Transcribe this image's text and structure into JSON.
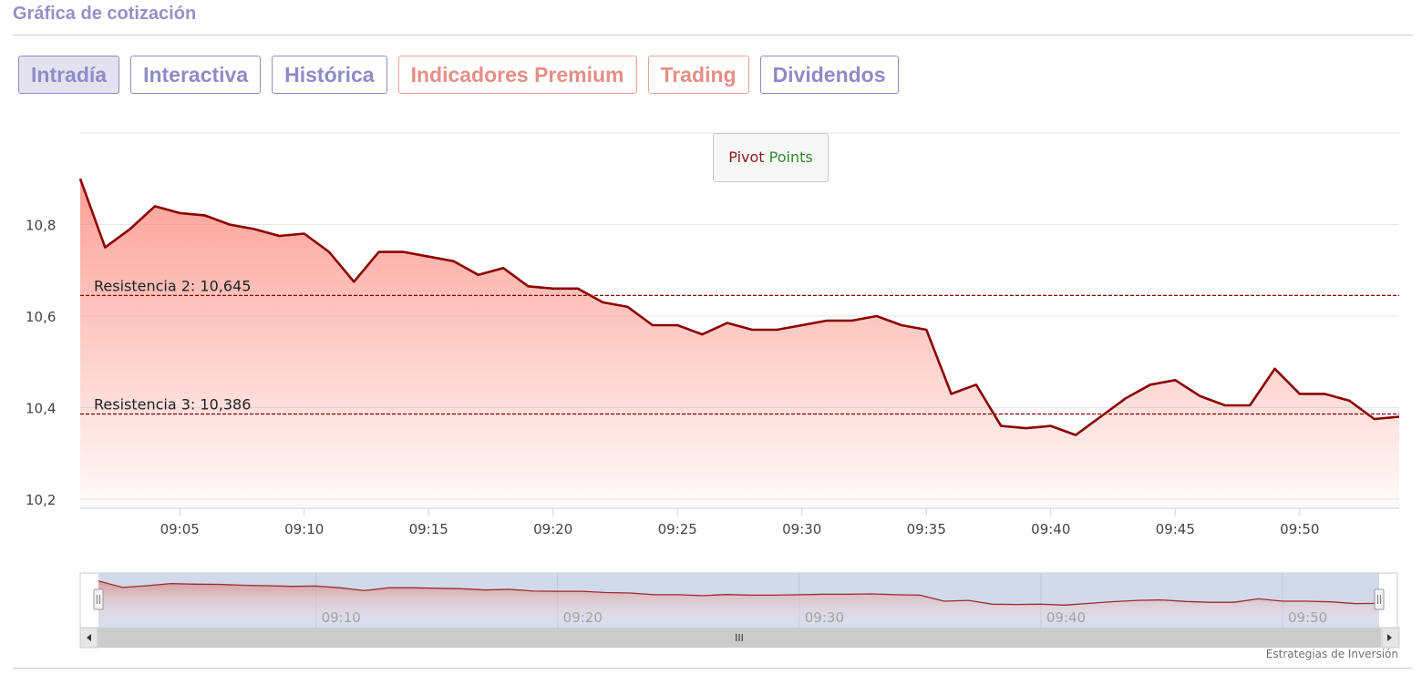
{
  "header": {
    "title": "Gráfica de cotización"
  },
  "tabs": [
    {
      "label": "Intradía",
      "active": true,
      "style": "normal"
    },
    {
      "label": "Interactiva",
      "active": false,
      "style": "normal"
    },
    {
      "label": "Histórica",
      "active": false,
      "style": "normal"
    },
    {
      "label": "Indicadores Premium",
      "active": false,
      "style": "premium"
    },
    {
      "label": "Trading",
      "active": false,
      "style": "premium"
    },
    {
      "label": "Dividendos",
      "active": false,
      "style": "normal"
    }
  ],
  "pivot_button": {
    "word1": "Pivot",
    "word2": "Points"
  },
  "navigator": {
    "scroll_handle": "III"
  },
  "footer": {
    "credit": "Estrategias de Inversión"
  },
  "colors": {
    "line": "#8b0000",
    "area": "#fa8072",
    "accent": "#9590c9",
    "premium": "#e48f86"
  },
  "chart_data": {
    "type": "area",
    "xlabel": "",
    "ylabel": "",
    "ylim": [
      10.18,
      11.0
    ],
    "xlim": [
      "09:01",
      "09:54"
    ],
    "yticks": [
      "10,2",
      "10,4",
      "10,6",
      "10,8"
    ],
    "xticks": [
      "09:05",
      "09:10",
      "09:15",
      "09:20",
      "09:25",
      "09:30",
      "09:35",
      "09:40",
      "09:45",
      "09:50"
    ],
    "navigator_ticks": [
      "09:10",
      "09:20",
      "09:30",
      "09:40",
      "09:50"
    ],
    "grid": true,
    "series": [
      {
        "x": [
          "09:01",
          "09:02",
          "09:03",
          "09:04",
          "09:05",
          "09:06",
          "09:07",
          "09:08",
          "09:09",
          "09:10",
          "09:11",
          "09:12",
          "09:13",
          "09:14",
          "09:15",
          "09:16",
          "09:17",
          "09:18",
          "09:19",
          "09:20",
          "09:21",
          "09:22",
          "09:23",
          "09:24",
          "09:25",
          "09:26",
          "09:27",
          "09:28",
          "09:29",
          "09:30",
          "09:31",
          "09:32",
          "09:33",
          "09:34",
          "09:35",
          "09:36",
          "09:37",
          "09:38",
          "09:39",
          "09:40",
          "09:41",
          "09:42",
          "09:43",
          "09:44",
          "09:45",
          "09:46",
          "09:47",
          "09:48",
          "09:49",
          "09:50",
          "09:51",
          "09:52",
          "09:53",
          "09:54"
        ],
        "values": [
          10.9,
          10.75,
          10.79,
          10.84,
          10.825,
          10.82,
          10.8,
          10.79,
          10.775,
          10.78,
          10.74,
          10.675,
          10.74,
          10.74,
          10.73,
          10.72,
          10.69,
          10.705,
          10.665,
          10.66,
          10.66,
          10.63,
          10.62,
          10.58,
          10.58,
          10.56,
          10.585,
          10.57,
          10.57,
          10.58,
          10.59,
          10.59,
          10.6,
          10.58,
          10.57,
          10.43,
          10.45,
          10.36,
          10.355,
          10.36,
          10.34,
          10.38,
          10.42,
          10.45,
          10.46,
          10.425,
          10.405,
          10.405,
          10.485,
          10.43,
          10.43,
          10.415,
          10.375,
          10.38
        ]
      }
    ],
    "reference_lines": [
      {
        "label": "Resistencia 2: 10,645",
        "value": 10.645
      },
      {
        "label": "Resistencia 3: 10,386",
        "value": 10.386
      }
    ]
  }
}
